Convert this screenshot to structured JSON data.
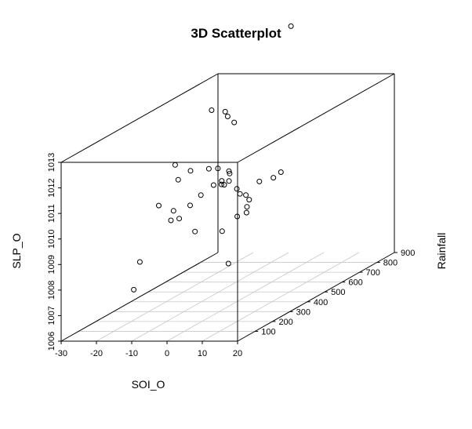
{
  "chart_data": {
    "type": "scatter",
    "subtype": "3d-scatterplot",
    "title": "3D Scatterplot",
    "xlabel": "SOI_O",
    "ylabel": "Rainfall",
    "zlabel": "SLP_O",
    "xlim": [
      -30,
      20
    ],
    "ylim": [
      0,
      900
    ],
    "zlim": [
      1006,
      1013
    ],
    "x_ticks": [
      -30,
      -20,
      -10,
      0,
      10,
      20
    ],
    "y_ticks": [
      100,
      200,
      300,
      400,
      500,
      600,
      700,
      800,
      900
    ],
    "z_ticks": [
      1006,
      1007,
      1008,
      1009,
      1010,
      1011,
      1012,
      1013
    ],
    "grid": "xy-plane",
    "points": [
      {
        "x": -2.4,
        "y": 760,
        "z": 1015.4
      },
      {
        "x": -7.1,
        "y": 400,
        "z": 1013.5
      },
      {
        "x": -5.1,
        "y": 437,
        "z": 1013.3
      },
      {
        "x": 0.6,
        "y": 336,
        "z": 1013.5
      },
      {
        "x": -4.8,
        "y": 483,
        "z": 1012.7
      },
      {
        "x": -9.2,
        "y": 233,
        "z": 1012.0
      },
      {
        "x": -8.3,
        "y": 303,
        "z": 1011.5
      },
      {
        "x": -4.3,
        "y": 379,
        "z": 1011.3
      },
      {
        "x": -7.3,
        "y": 212,
        "z": 1011.5
      },
      {
        "x": -6.7,
        "y": 376,
        "z": 1011.3
      },
      {
        "x": -1.1,
        "y": 378,
        "z": 1011.2
      },
      {
        "x": 2.9,
        "y": 301,
        "z": 1011.4
      },
      {
        "x": -3.4,
        "y": 383,
        "z": 1010.8
      },
      {
        "x": -1.7,
        "y": 347,
        "z": 1010.8
      },
      {
        "x": -3.6,
        "y": 340,
        "z": 1010.8
      },
      {
        "x": -2.0,
        "y": 369,
        "z": 1010.7
      },
      {
        "x": -3.8,
        "y": 433,
        "z": 1010.6
      },
      {
        "x": -6.0,
        "y": 316,
        "z": 1010.5
      },
      {
        "x": -0.2,
        "y": 405,
        "z": 1010.4
      },
      {
        "x": -12.7,
        "y": 210,
        "z": 1010.5
      },
      {
        "x": -11.0,
        "y": 260,
        "z": 1010.1
      },
      {
        "x": -9.0,
        "y": 315,
        "z": 1010.1
      },
      {
        "x": 2.0,
        "y": 570,
        "z": 1010.2
      },
      {
        "x": 1.2,
        "y": 506,
        "z": 1010.3
      },
      {
        "x": 2.6,
        "y": 601,
        "z": 1010.3
      },
      {
        "x": -4.5,
        "y": 510,
        "z": 1009.8
      },
      {
        "x": -4.8,
        "y": 550,
        "z": 1009.6
      },
      {
        "x": -5.4,
        "y": 581,
        "z": 1009.3
      },
      {
        "x": -10.6,
        "y": 285,
        "z": 1009.7
      },
      {
        "x": -10.8,
        "y": 241,
        "z": 1009.8
      },
      {
        "x": -3.7,
        "y": 534,
        "z": 1009.2
      },
      {
        "x": -2.2,
        "y": 501,
        "z": 1009.1
      },
      {
        "x": -2.9,
        "y": 462,
        "z": 1009.1
      },
      {
        "x": -9.9,
        "y": 361,
        "z": 1008.9
      },
      {
        "x": -6.2,
        "y": 442,
        "z": 1008.6
      },
      {
        "x": -14.1,
        "y": 130,
        "z": 1008.6
      },
      {
        "x": -16.0,
        "y": 133,
        "z": 1007.5
      },
      {
        "x": -2.3,
        "y": 399,
        "z": 1007.5
      }
    ]
  }
}
